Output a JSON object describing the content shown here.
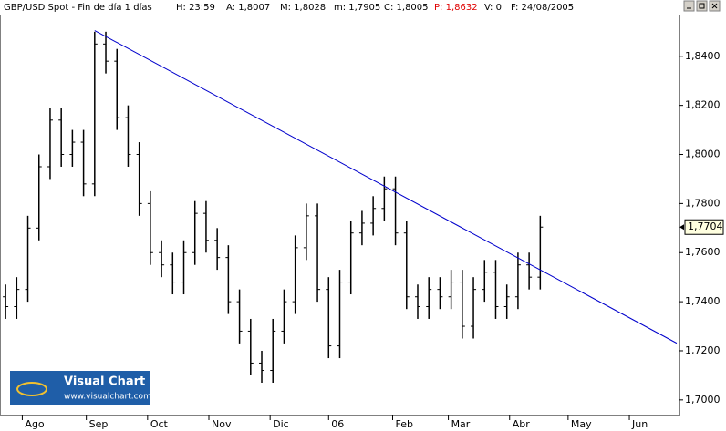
{
  "header": [
    "GBP/USD Spot - Fin de día 1 días",
    "H: 23:59",
    "A: 1,8007",
    "M: 1,8028",
    "m: 1,7905",
    "C: 1,8005",
    "P: 1,8632",
    "V: 0",
    "F: 24/08/2005"
  ],
  "logo": {
    "title": "Visual Chart",
    "url": "www.visualchart.com"
  },
  "chart_data": {
    "type": "ohlc",
    "color": "#000000",
    "x": [
      2,
      6,
      10,
      14,
      18,
      22,
      26,
      30,
      34,
      38,
      42,
      46,
      50,
      54,
      58,
      62,
      66,
      70,
      74,
      78,
      82,
      86,
      90,
      94,
      98,
      102,
      106,
      110,
      114,
      118,
      122,
      126,
      130,
      134,
      138,
      142,
      146,
      150,
      154,
      158,
      162,
      166,
      170,
      174,
      178,
      182,
      186,
      190,
      194
    ],
    "open": [
      1.742,
      1.738,
      1.745,
      1.77,
      1.795,
      1.814,
      1.8,
      1.805,
      1.788,
      1.845,
      1.838,
      1.815,
      1.8,
      1.78,
      1.76,
      1.755,
      1.748,
      1.76,
      1.776,
      1.765,
      1.758,
      1.74,
      1.728,
      1.715,
      1.712,
      1.728,
      1.74,
      1.762,
      1.775,
      1.745,
      1.722,
      1.748,
      1.768,
      1.772,
      1.778,
      1.786,
      1.768,
      1.742,
      1.738,
      1.745,
      1.742,
      1.748,
      1.73,
      1.745,
      1.752,
      1.738,
      1.742,
      1.755,
      1.75
    ],
    "high": [
      1.747,
      1.75,
      1.775,
      1.8,
      1.819,
      1.819,
      1.81,
      1.81,
      1.85,
      1.85,
      1.843,
      1.82,
      1.805,
      1.785,
      1.765,
      1.76,
      1.765,
      1.781,
      1.781,
      1.77,
      1.763,
      1.745,
      1.733,
      1.72,
      1.733,
      1.745,
      1.767,
      1.78,
      1.78,
      1.75,
      1.753,
      1.773,
      1.777,
      1.783,
      1.791,
      1.791,
      1.773,
      1.747,
      1.75,
      1.75,
      1.753,
      1.753,
      1.75,
      1.757,
      1.757,
      1.747,
      1.76,
      1.76,
      1.775
    ],
    "low": [
      1.733,
      1.733,
      1.74,
      1.765,
      1.79,
      1.795,
      1.795,
      1.783,
      1.783,
      1.833,
      1.81,
      1.795,
      1.775,
      1.755,
      1.75,
      1.743,
      1.743,
      1.755,
      1.76,
      1.753,
      1.735,
      1.723,
      1.71,
      1.707,
      1.707,
      1.723,
      1.735,
      1.757,
      1.74,
      1.717,
      1.717,
      1.743,
      1.763,
      1.767,
      1.773,
      1.763,
      1.737,
      1.733,
      1.733,
      1.737,
      1.737,
      1.725,
      1.725,
      1.74,
      1.733,
      1.733,
      1.737,
      1.745,
      1.745
    ],
    "close": [
      1.738,
      1.745,
      1.77,
      1.795,
      1.814,
      1.8,
      1.805,
      1.788,
      1.845,
      1.838,
      1.815,
      1.8,
      1.78,
      1.76,
      1.755,
      1.748,
      1.76,
      1.776,
      1.765,
      1.758,
      1.74,
      1.728,
      1.715,
      1.712,
      1.728,
      1.74,
      1.762,
      1.775,
      1.745,
      1.722,
      1.748,
      1.768,
      1.772,
      1.778,
      1.786,
      1.768,
      1.742,
      1.738,
      1.745,
      1.742,
      1.748,
      1.73,
      1.745,
      1.752,
      1.738,
      1.742,
      1.755,
      1.75,
      1.7704
    ],
    "trendline": {
      "color": "#0000cc",
      "x": [
        34,
        243
      ],
      "values": [
        1.8505,
        1.7231
      ]
    },
    "last_price": {
      "value": 1.7704,
      "label": "1,7704"
    },
    "xlim": [
      0,
      244
    ],
    "xticks": [
      {
        "value": 8,
        "label": "Ago"
      },
      {
        "value": 31,
        "label": "Sep"
      },
      {
        "value": 53,
        "label": "Oct"
      },
      {
        "value": 75,
        "label": "Nov"
      },
      {
        "value": 97,
        "label": "Dic"
      },
      {
        "value": 118,
        "label": "06"
      },
      {
        "value": 141,
        "label": "Feb"
      },
      {
        "value": 161,
        "label": "Mar"
      },
      {
        "value": 183,
        "label": "Abr"
      },
      {
        "value": 204,
        "label": "May"
      },
      {
        "value": 226,
        "label": "Jun"
      }
    ],
    "ylim": [
      1.694,
      1.857
    ],
    "yticks": [
      {
        "value": 1.7,
        "label": "1,7000"
      },
      {
        "value": 1.72,
        "label": "1,7200"
      },
      {
        "value": 1.74,
        "label": "1,7400"
      },
      {
        "value": 1.76,
        "label": "1,7600"
      },
      {
        "value": 1.78,
        "label": "1,7800"
      },
      {
        "value": 1.8,
        "label": "1,8000"
      },
      {
        "value": 1.82,
        "label": "1,8200"
      },
      {
        "value": 1.84,
        "label": "1,8400"
      }
    ]
  }
}
